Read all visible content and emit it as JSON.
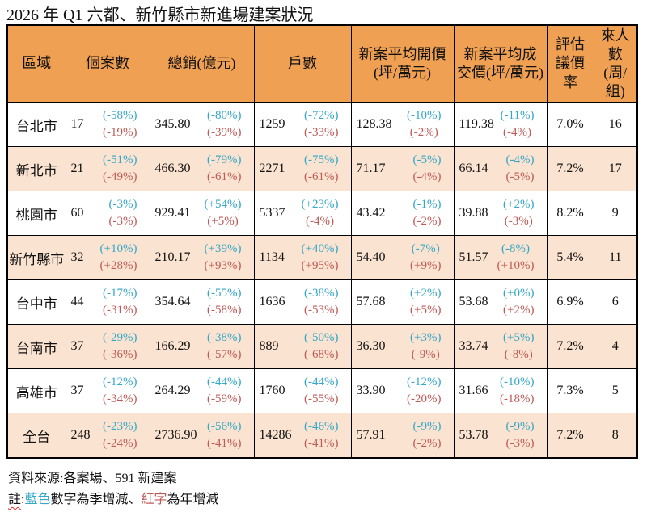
{
  "title": {
    "prefix": "2026 年 Q1 ",
    "squiggle": "六都",
    "suffix": "、新竹縣市新進場建案狀況"
  },
  "colors": {
    "header_bg": "#F0A052",
    "alt_row_bg": "#FAE3D0",
    "quarter_blue": "#35A7C8",
    "year_red": "#BD5B58"
  },
  "table": {
    "headers": [
      {
        "key": "region",
        "label": "區域"
      },
      {
        "key": "cases",
        "label": "個案數"
      },
      {
        "key": "total_sales",
        "label": "總銷(億元)"
      },
      {
        "key": "units",
        "label": "戶數"
      },
      {
        "key": "avg_open_price",
        "label": "新案平均開價\n(坪/萬元)"
      },
      {
        "key": "avg_deal_price",
        "label": "新案平均成\n交價(坪/萬元)"
      },
      {
        "key": "nego_rate",
        "label": "評估\n議價\n率"
      },
      {
        "key": "visitors",
        "label": "來人\n數\n(周/\n組)"
      }
    ],
    "rows": [
      {
        "region": "台北市",
        "cases": {
          "value": "17",
          "qoq": "(-58%)",
          "yoy": "(-19%)"
        },
        "total_sales": {
          "value": "345.80",
          "qoq": "(-80%)",
          "yoy": "(-39%)"
        },
        "units": {
          "value": "1259",
          "qoq": "(-72%)",
          "yoy": "(-33%)"
        },
        "avg_open_price": {
          "value": "128.38",
          "qoq": "(-10%)",
          "yoy": "(-2%)"
        },
        "avg_deal_price": {
          "value": "119.38",
          "qoq": "(-11%)",
          "yoy": "(-4%)"
        },
        "nego_rate": "7.0%",
        "visitors": "16"
      },
      {
        "region": "新北市",
        "cases": {
          "value": "21",
          "qoq": "(-51%)",
          "yoy": "(-49%)"
        },
        "total_sales": {
          "value": "466.30",
          "qoq": "(-79%)",
          "yoy": "(-61%)"
        },
        "units": {
          "value": "2271",
          "qoq": "(-75%)",
          "yoy": "(-61%)"
        },
        "avg_open_price": {
          "value": "71.17",
          "qoq": "(-5%)",
          "yoy": "(-4%)"
        },
        "avg_deal_price": {
          "value": "66.14",
          "qoq": "(-4%)",
          "yoy": "(-5%)"
        },
        "nego_rate": "7.2%",
        "visitors": "17"
      },
      {
        "region": "桃園市",
        "cases": {
          "value": "60",
          "qoq": "(-3%)",
          "yoy": "(-3%)"
        },
        "total_sales": {
          "value": "929.41",
          "qoq": "(+54%)",
          "yoy": "(+5%)"
        },
        "units": {
          "value": "5337",
          "qoq": "(+23%)",
          "yoy": "(-4%)"
        },
        "avg_open_price": {
          "value": "43.42",
          "qoq": "(-1%)",
          "yoy": "(-2%)"
        },
        "avg_deal_price": {
          "value": "39.88",
          "qoq": "(+2%)",
          "yoy": "(-3%)"
        },
        "nego_rate": "8.2%",
        "visitors": "9"
      },
      {
        "region": "新竹縣市",
        "cases": {
          "value": "32",
          "qoq": "(+10%)",
          "yoy": "(+28%)"
        },
        "total_sales": {
          "value": "210.17",
          "qoq": "(+39%)",
          "yoy": "(+93%)"
        },
        "units": {
          "value": "1134",
          "qoq": "(+40%)",
          "yoy": "(+95%)"
        },
        "avg_open_price": {
          "value": "54.40",
          "qoq": "(-7%)",
          "yoy": "(+9%)"
        },
        "avg_deal_price": {
          "value": "51.57",
          "qoq": "(-8%)",
          "yoy": "(+10%)"
        },
        "nego_rate": "5.4%",
        "visitors": "11"
      },
      {
        "region": "台中市",
        "cases": {
          "value": "44",
          "qoq": "(-17%)",
          "yoy": "(-31%)"
        },
        "total_sales": {
          "value": "354.64",
          "qoq": "(-55%)",
          "yoy": "(-58%)"
        },
        "units": {
          "value": "1636",
          "qoq": "(-38%)",
          "yoy": "(-53%)"
        },
        "avg_open_price": {
          "value": "57.68",
          "qoq": "(+2%)",
          "yoy": "(+5%)"
        },
        "avg_deal_price": {
          "value": "53.68",
          "qoq": "(+0%)",
          "yoy": "(+2%)"
        },
        "nego_rate": "6.9%",
        "visitors": "6"
      },
      {
        "region": "台南市",
        "cases": {
          "value": "37",
          "qoq": "(-29%)",
          "yoy": "(-36%)"
        },
        "total_sales": {
          "value": "166.29",
          "qoq": "(-38%)",
          "yoy": "(-57%)"
        },
        "units": {
          "value": "889",
          "qoq": "(-50%)",
          "yoy": "(-68%)"
        },
        "avg_open_price": {
          "value": "36.30",
          "qoq": "(+3%)",
          "yoy": "(-9%)"
        },
        "avg_deal_price": {
          "value": "33.74",
          "qoq": "(+5%)",
          "yoy": "(-8%)"
        },
        "nego_rate": "7.2%",
        "visitors": "4"
      },
      {
        "region": "高雄市",
        "cases": {
          "value": "37",
          "qoq": "(-12%)",
          "yoy": "(-34%)"
        },
        "total_sales": {
          "value": "264.29",
          "qoq": "(-44%)",
          "yoy": "(-59%)"
        },
        "units": {
          "value": "1760",
          "qoq": "(-44%)",
          "yoy": "(-55%)"
        },
        "avg_open_price": {
          "value": "33.90",
          "qoq": "(-12%)",
          "yoy": "(-20%)"
        },
        "avg_deal_price": {
          "value": "31.66",
          "qoq": "(-10%)",
          "yoy": "(-18%)"
        },
        "nego_rate": "7.3%",
        "visitors": "5"
      },
      {
        "region": "全台",
        "cases": {
          "value": "248",
          "qoq": "(-23%)",
          "yoy": "(-24%)"
        },
        "total_sales": {
          "value": "2736.90",
          "qoq": "(-56%)",
          "yoy": "(-41%)"
        },
        "units": {
          "value": "14286",
          "qoq": "(-46%)",
          "yoy": "(-41%)"
        },
        "avg_open_price": {
          "value": "57.91",
          "qoq": "(-9%)",
          "yoy": "(-2%)"
        },
        "avg_deal_price": {
          "value": "53.78",
          "qoq": "(-9%)",
          "yoy": "(-3%)"
        },
        "nego_rate": "7.2%",
        "visitors": "8"
      }
    ]
  },
  "footer": {
    "source": "資料來源:各案場、591 新建案",
    "note": {
      "squiggle": "註",
      "colon": ":",
      "blue_word": "藍色",
      "mid": "數字為季增減、",
      "red_word": "紅字",
      "suffix": "為年增減"
    }
  }
}
